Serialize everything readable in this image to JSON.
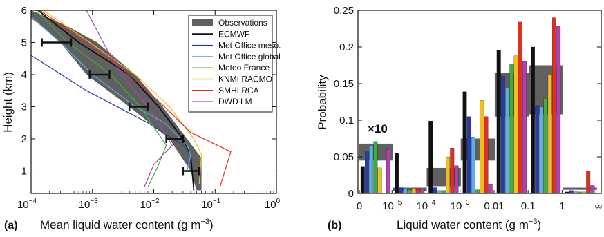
{
  "chart_data": [
    {
      "panel_label": "(a)",
      "type": "line",
      "xscale": "log",
      "xlim": [
        0.0001,
        1
      ],
      "ylim": [
        0.3,
        6
      ],
      "xlabel": "Mean liquid water content (g m",
      "xlabel_sup": "−3",
      "xlabel_end": ")",
      "ylabel": "Height (km)",
      "xtick_labels": [
        {
          "base": "10",
          "exp": "−4",
          "value": 0.0001
        },
        {
          "base": "10",
          "exp": "−3",
          "value": 0.001
        },
        {
          "base": "10",
          "exp": "−2",
          "value": 0.01
        },
        {
          "base": "10",
          "exp": "−1",
          "value": 0.1
        },
        {
          "base": "10",
          "exp": "0",
          "value": 1
        }
      ],
      "ytick_labels": [
        "1",
        "2",
        "3",
        "4",
        "5",
        "6"
      ],
      "yticks": [
        1,
        2,
        3,
        4,
        5,
        6
      ],
      "observations": {
        "name": "Observations",
        "color": "#606060",
        "band_lower": [
          [
            0.05,
            0.4
          ],
          [
            0.04,
            1.0
          ],
          [
            0.018,
            2.0
          ],
          [
            0.004,
            3.0
          ],
          [
            0.0008,
            4.0
          ],
          [
            0.0003,
            5.0
          ],
          [
            0.00015,
            5.5
          ],
          [
            0.0001,
            5.75
          ]
        ],
        "band_upper": [
          [
            0.0001,
            6.0
          ],
          [
            0.0004,
            5.5
          ],
          [
            0.0012,
            5.0
          ],
          [
            0.005,
            4.0
          ],
          [
            0.014,
            3.0
          ],
          [
            0.035,
            2.0
          ],
          [
            0.06,
            1.4
          ],
          [
            0.06,
            0.4
          ]
        ],
        "points": [
          {
            "x": 0.00025,
            "y": 5.0,
            "xerr": [
              0.00015,
              0.00045
            ]
          },
          {
            "x": 0.0013,
            "y": 4.0,
            "xerr": [
              0.0009,
              0.0019
            ]
          },
          {
            "x": 0.0055,
            "y": 3.0,
            "xerr": [
              0.004,
              0.008
            ]
          },
          {
            "x": 0.022,
            "y": 2.0,
            "xerr": [
              0.016,
              0.03
            ]
          },
          {
            "x": 0.04,
            "y": 1.0,
            "xerr": [
              0.03,
              0.055
            ]
          }
        ]
      },
      "series": [
        {
          "name": "ECMWF",
          "color": "#111111",
          "points": [
            [
              0.00013,
              6.0
            ],
            [
              0.0006,
              5.0
            ],
            [
              0.004,
              4.0
            ],
            [
              0.012,
              3.0
            ],
            [
              0.03,
              2.0
            ],
            [
              0.04,
              1.5
            ],
            [
              0.045,
              0.4
            ]
          ]
        },
        {
          "name": "Met Office meso.",
          "color": "#2a3aa8",
          "points": [
            [
              0.0001,
              4.6
            ],
            [
              0.0008,
              3.5
            ],
            [
              0.008,
              2.5
            ],
            [
              0.03,
              1.8
            ],
            [
              0.04,
              1.5
            ],
            [
              0.04,
              1.2
            ]
          ]
        },
        {
          "name": "Met Office global",
          "color": "#5ab0e0",
          "points": [
            [
              0.0001,
              5.8
            ],
            [
              0.0003,
              5.0
            ],
            [
              0.001,
              4.0
            ],
            [
              0.005,
              3.0
            ],
            [
              0.015,
              2.5
            ],
            [
              0.035,
              1.8
            ],
            [
              0.04,
              1.5
            ],
            [
              0.035,
              1.0
            ]
          ]
        },
        {
          "name": "Meteo France",
          "color": "#3fae3f",
          "points": [
            [
              0.00012,
              6.0
            ],
            [
              0.0004,
              5.0
            ],
            [
              0.002,
              4.0
            ],
            [
              0.006,
              3.0
            ],
            [
              0.016,
              1.8
            ],
            [
              0.012,
              1.2
            ],
            [
              0.008,
              0.5
            ]
          ]
        },
        {
          "name": "KNMI RACMO",
          "color": "#f0c020",
          "points": [
            [
              0.00016,
              6.0
            ],
            [
              0.0009,
              5.0
            ],
            [
              0.005,
              4.0
            ],
            [
              0.018,
              3.0
            ],
            [
              0.045,
              2.0
            ],
            [
              0.06,
              1.5
            ],
            [
              0.055,
              0.6
            ]
          ]
        },
        {
          "name": "SMHI RCA",
          "color": "#e03020",
          "points": [
            [
              0.00014,
              6.0
            ],
            [
              0.0008,
              5.0
            ],
            [
              0.004,
              4.0
            ],
            [
              0.015,
              3.0
            ],
            [
              0.04,
              2.2
            ],
            [
              0.18,
              1.6
            ],
            [
              0.12,
              0.5
            ]
          ]
        },
        {
          "name": "DWD LM",
          "color": "#b040b0",
          "points": [
            [
              0.0008,
              6.0
            ],
            [
              0.0015,
              5.0
            ],
            [
              0.003,
              4.0
            ],
            [
              0.008,
              3.0
            ],
            [
              0.02,
              1.8
            ],
            [
              0.01,
              1.2
            ],
            [
              0.007,
              0.5
            ]
          ]
        }
      ]
    },
    {
      "panel_label": "(b)",
      "type": "bar",
      "annotation": "×10",
      "ylim": [
        0,
        0.25
      ],
      "xlabel": "Liquid water content (g m",
      "xlabel_sup": "−3",
      "xlabel_end": ")",
      "ylabel": "Probability",
      "ytick_labels": [
        "0",
        "0.05",
        "0.1",
        "0.15",
        "0.2",
        "0.25"
      ],
      "yticks": [
        0,
        0.05,
        0.1,
        0.15,
        0.2,
        0.25
      ],
      "xtick_labels": [
        {
          "base": "0",
          "exp": ""
        },
        {
          "base": "10",
          "exp": "−5"
        },
        {
          "base": "10",
          "exp": "−4"
        },
        {
          "base": "10",
          "exp": "−3"
        },
        {
          "base": "0.01",
          "exp": ""
        },
        {
          "base": "0.1",
          "exp": ""
        },
        {
          "base": "1",
          "exp": ""
        },
        {
          "base": "∞",
          "exp": ""
        }
      ],
      "bin_count": 7,
      "observations_range": [
        [
          0.045,
          0.068
        ],
        [
          0.003,
          0.008
        ],
        [
          0.01,
          0.035
        ],
        [
          0.045,
          0.075
        ],
        [
          0.105,
          0.165
        ],
        [
          0.108,
          0.175
        ],
        [
          0.005,
          0.008
        ]
      ],
      "series_order": [
        "ECMWF",
        "Met Office meso.",
        "Met Office global",
        "Meteo France",
        "KNMI RACMO",
        "SMHI RCA",
        "DWD LM"
      ],
      "series_colors": [
        "#111111",
        "#2a3aa8",
        "#5ab0e0",
        "#3fae3f",
        "#f0c020",
        "#e03020",
        "#b040b0"
      ],
      "values": [
        [
          0.037,
          0.057,
          0.065,
          0.071,
          0.035,
          0.0,
          0.06
        ],
        [
          0.055,
          0.008,
          0.006,
          0.005,
          0.007,
          0.007,
          0.006
        ],
        [
          0.099,
          0.008,
          0.004,
          0.004,
          0.05,
          0.062,
          0.038
        ],
        [
          0.139,
          0.105,
          0.077,
          0.005,
          0.127,
          0.105,
          0.013
        ],
        [
          0.196,
          0.16,
          0.144,
          0.176,
          0.188,
          0.234,
          0.18
        ],
        [
          0.2,
          0.12,
          0.118,
          0.13,
          0.162,
          0.24,
          0.228
        ],
        [
          0.002,
          0.004,
          0.003,
          0.002,
          0.002,
          0.03,
          0.011
        ]
      ]
    }
  ]
}
